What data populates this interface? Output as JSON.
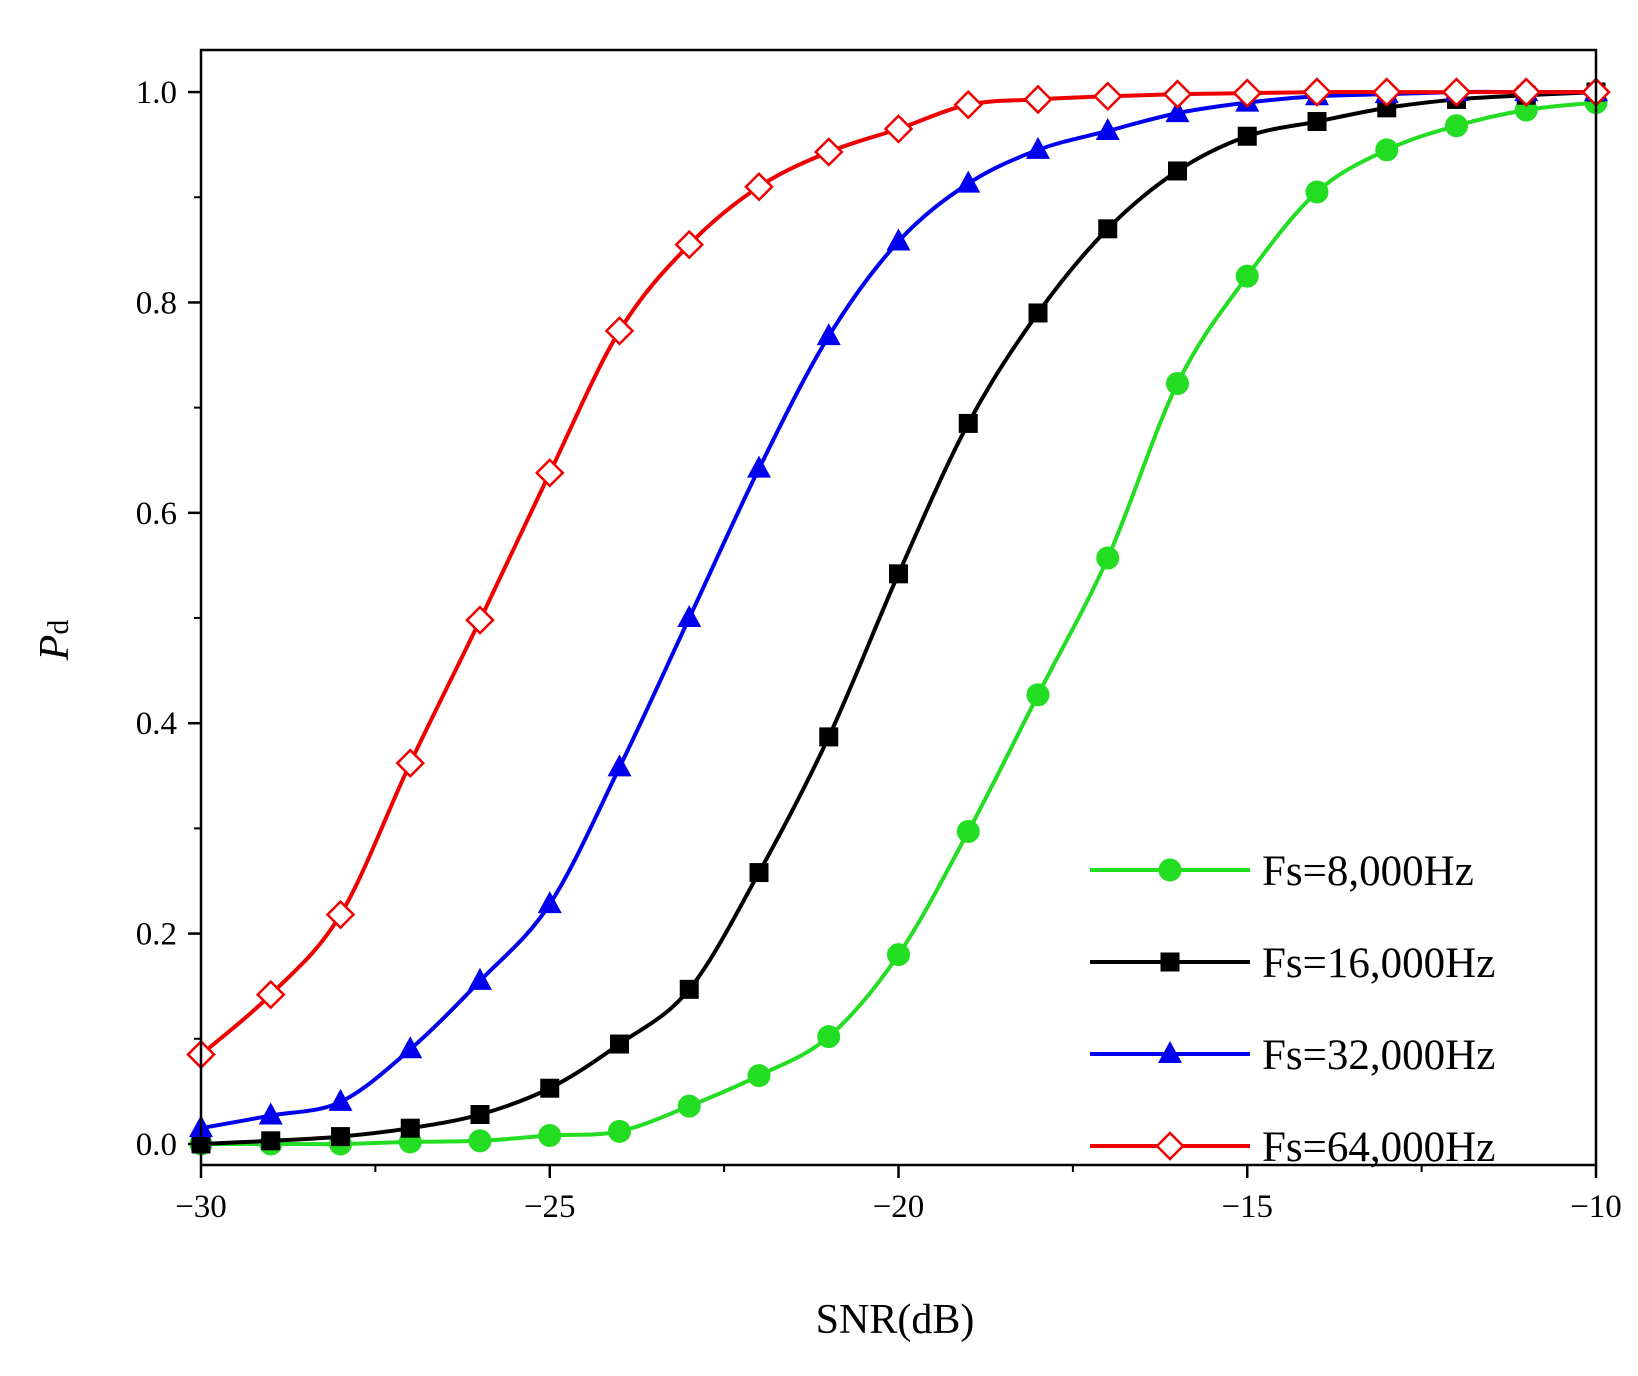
{
  "chart_data": {
    "type": "line",
    "title": "",
    "xlabel": "SNR(dB)",
    "ylabel_main": "P",
    "ylabel_sub": "d",
    "xlim": [
      -30,
      -10
    ],
    "ylim": [
      -0.02,
      1.04
    ],
    "xticks": [
      -30,
      -25,
      -20,
      -15,
      -10
    ],
    "xtick_labels": [
      "−30",
      "−25",
      "−20",
      "−15",
      "−10"
    ],
    "yticks": [
      0.0,
      0.2,
      0.4,
      0.6,
      0.8,
      1.0
    ],
    "ytick_labels": [
      "0.0",
      "0.2",
      "0.4",
      "0.6",
      "0.8",
      "1.0"
    ],
    "grid": false,
    "legend_position": "bottom-right",
    "x": [
      -30,
      -29,
      -28,
      -27,
      -26,
      -25,
      -24,
      -23,
      -22,
      -21,
      -20,
      -19,
      -18,
      -17,
      -16,
      -15,
      -14,
      -13,
      -12,
      -11,
      -10
    ],
    "series": [
      {
        "name": "Fs=8,000Hz",
        "color": "#22dd22",
        "marker": "circle",
        "values": [
          0.0,
          0.0,
          0.0,
          0.002,
          0.003,
          0.008,
          0.012,
          0.036,
          0.065,
          0.102,
          0.18,
          0.297,
          0.427,
          0.557,
          0.723,
          0.825,
          0.905,
          0.945,
          0.968,
          0.983,
          0.99
        ]
      },
      {
        "name": "Fs=16,000Hz",
        "color": "#000000",
        "marker": "square",
        "values": [
          0.0,
          0.003,
          0.007,
          0.015,
          0.028,
          0.053,
          0.095,
          0.147,
          0.258,
          0.387,
          0.542,
          0.685,
          0.79,
          0.87,
          0.925,
          0.958,
          0.972,
          0.985,
          0.993,
          0.997,
          1.0
        ]
      },
      {
        "name": "Fs=32,000Hz",
        "color": "#0000ee",
        "marker": "triangle",
        "values": [
          0.015,
          0.027,
          0.04,
          0.09,
          0.155,
          0.228,
          0.358,
          0.5,
          0.642,
          0.768,
          0.858,
          0.913,
          0.945,
          0.963,
          0.98,
          0.99,
          0.996,
          0.998,
          1.0,
          1.0,
          1.0
        ]
      },
      {
        "name": "Fs=64,000Hz",
        "color": "#ee0000",
        "marker": "diamond-open",
        "values": [
          0.085,
          0.142,
          0.218,
          0.362,
          0.498,
          0.638,
          0.773,
          0.855,
          0.91,
          0.943,
          0.965,
          0.988,
          0.993,
          0.996,
          0.998,
          0.999,
          1.0,
          1.0,
          1.0,
          1.0,
          1.0
        ]
      }
    ]
  }
}
